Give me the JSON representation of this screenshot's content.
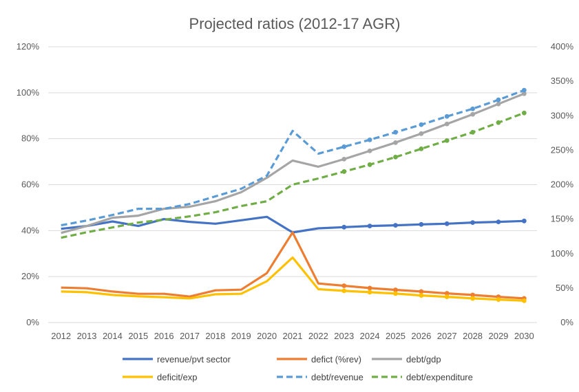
{
  "chart_data": {
    "type": "line",
    "title": "Projected ratios (2012-17 AGR)",
    "categories": [
      "2012",
      "2013",
      "2014",
      "2015",
      "2016",
      "2017",
      "2018",
      "2019",
      "2020",
      "2021",
      "2022",
      "2023",
      "2024",
      "2025",
      "2026",
      "2027",
      "2028",
      "2029",
      "2030"
    ],
    "y_left": {
      "min": 0,
      "max": 120,
      "step": 20,
      "unit": "%",
      "ticks": [
        "0%",
        "20%",
        "40%",
        "60%",
        "80%",
        "100%",
        "120%"
      ]
    },
    "y_right": {
      "min": 0,
      "max": 400,
      "step": 50,
      "unit": "%",
      "ticks": [
        "0%",
        "50%",
        "100%",
        "150%",
        "200%",
        "250%",
        "300%",
        "350%",
        "400%"
      ]
    },
    "grid": "horizontal",
    "legend_position": "bottom",
    "series": [
      {
        "name": "revenue/pvt sector",
        "axis": "left",
        "color": "#4472C4",
        "dash": "solid",
        "marker_from": "2023",
        "values": [
          40.8,
          42,
          44,
          42,
          45,
          43.8,
          43,
          44.5,
          46,
          39.2,
          41,
          41.5,
          42,
          42.3,
          42.7,
          43,
          43.5,
          43.8,
          44.2
        ]
      },
      {
        "name": "defict (%rev)",
        "axis": "left",
        "color": "#ED7D31",
        "dash": "solid",
        "marker_from": "2023",
        "values": [
          15.2,
          14.9,
          13.5,
          12.5,
          12.5,
          11.3,
          14,
          14.3,
          21.5,
          39.2,
          17,
          16,
          15,
          14.2,
          13.5,
          12.7,
          12,
          11.2,
          10.5
        ]
      },
      {
        "name": "debt/gdp",
        "axis": "right",
        "color": "#A5A5A5",
        "dash": "solid",
        "marker_from": "2023",
        "values": [
          130,
          140,
          152,
          155,
          165,
          168,
          176,
          189,
          210,
          235,
          226,
          237,
          249,
          261,
          274,
          288,
          302,
          317,
          332
        ]
      },
      {
        "name": "deficit/exp",
        "axis": "left",
        "color": "#FFC000",
        "dash": "solid",
        "marker_from": "2023",
        "values": [
          13.5,
          13.2,
          12,
          11.4,
          11,
          10.5,
          12.3,
          12.5,
          18,
          28.3,
          14.5,
          13.8,
          13.2,
          12.6,
          11.8,
          11.2,
          10.5,
          10,
          9.5
        ]
      },
      {
        "name": "debt/revenue",
        "axis": "right",
        "color": "#5B9BD5",
        "dash": "dashed",
        "marker_from": "2023",
        "values": [
          141,
          148,
          156,
          165,
          165,
          172,
          183,
          194,
          213,
          278,
          245,
          255,
          265,
          276,
          287,
          299,
          310,
          323,
          337
        ]
      },
      {
        "name": "debt/expenditure",
        "axis": "right",
        "color": "#70AD47",
        "dash": "dashed",
        "marker_from": "2023",
        "values": [
          123,
          131,
          138,
          145,
          149,
          154,
          160,
          169,
          176,
          200,
          209,
          219,
          229,
          240,
          252,
          264,
          276,
          290,
          304
        ]
      }
    ]
  }
}
